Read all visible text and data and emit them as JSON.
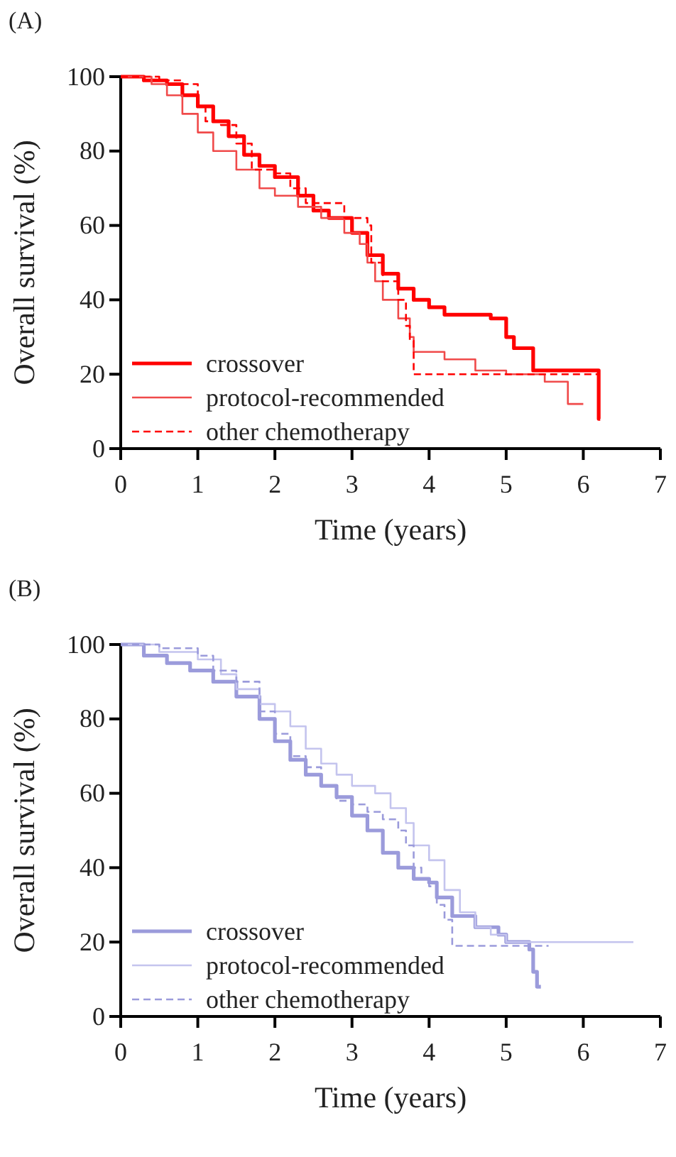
{
  "chart_data": [
    {
      "type": "step",
      "title": "(A)",
      "xlabel": "Time (years)",
      "ylabel": "Overall survival (%)",
      "xlim": [
        0,
        7
      ],
      "ylim": [
        0,
        100
      ],
      "xticks": [
        0,
        1,
        2,
        3,
        4,
        5,
        6,
        7
      ],
      "yticks": [
        0,
        20,
        40,
        60,
        80,
        100
      ],
      "legend": "bottom left",
      "series": [
        {
          "name": "crossover",
          "color": "#ff0000",
          "line_style": "solid",
          "x": [
            0,
            0.3,
            0.6,
            0.8,
            1.0,
            1.2,
            1.4,
            1.6,
            1.8,
            2.0,
            2.3,
            2.5,
            2.7,
            3.0,
            3.2,
            3.4,
            3.6,
            3.8,
            4.0,
            4.2,
            4.8,
            5.0,
            5.1,
            5.35,
            6.2,
            6.22
          ],
          "values": [
            100,
            99,
            98,
            95,
            92,
            88,
            84,
            79,
            76,
            73,
            68,
            64,
            62,
            58,
            52,
            47,
            43,
            40,
            38,
            36,
            35,
            30,
            27,
            21,
            8,
            8
          ]
        },
        {
          "name": "protocol-recommended",
          "color": "#f04a4a",
          "line_style": "solid",
          "x": [
            0,
            0.4,
            0.6,
            0.8,
            1.0,
            1.2,
            1.5,
            1.8,
            2.0,
            2.3,
            2.6,
            2.9,
            3.1,
            3.2,
            3.3,
            3.4,
            3.6,
            3.75,
            3.8,
            4.2,
            4.6,
            5.0,
            5.5,
            5.8,
            6.0
          ],
          "values": [
            100,
            98,
            95,
            90,
            85,
            80,
            75,
            70,
            68,
            65,
            62,
            58,
            55,
            50,
            45,
            40,
            35,
            30,
            26,
            24,
            21,
            20,
            18,
            12,
            12
          ]
        },
        {
          "name": "other chemotherapy",
          "color": "#ff0000",
          "line_style": "dashed",
          "x": [
            0,
            0.5,
            0.8,
            1.0,
            1.1,
            1.3,
            1.5,
            1.7,
            2.0,
            2.2,
            2.4,
            2.9,
            3.2,
            3.25,
            3.4,
            3.6,
            3.7,
            3.75,
            3.8,
            6.2
          ],
          "values": [
            100,
            99,
            98,
            92,
            88,
            87,
            82,
            75,
            74,
            70,
            66,
            62,
            60,
            50,
            45,
            40,
            33,
            29,
            20,
            20
          ]
        }
      ]
    },
    {
      "type": "step",
      "title": "(B)",
      "xlabel": "Time (years)",
      "ylabel": "Overall survival (%)",
      "xlim": [
        0,
        7
      ],
      "ylim": [
        0,
        100
      ],
      "xticks": [
        0,
        1,
        2,
        3,
        4,
        5,
        6,
        7
      ],
      "yticks": [
        0,
        20,
        40,
        60,
        80,
        100
      ],
      "legend": "bottom left",
      "series": [
        {
          "name": "crossover",
          "color": "#9b9bdb",
          "line_style": "solid",
          "x": [
            0,
            0.3,
            0.6,
            0.9,
            1.2,
            1.5,
            1.8,
            2.0,
            2.2,
            2.4,
            2.6,
            2.8,
            3.0,
            3.2,
            3.4,
            3.6,
            3.8,
            4.0,
            4.1,
            4.3,
            4.6,
            4.9,
            5.0,
            5.3,
            5.35,
            5.4,
            5.45
          ],
          "values": [
            100,
            97,
            95,
            93,
            90,
            86,
            80,
            74,
            69,
            65,
            62,
            59,
            54,
            50,
            44,
            40,
            37,
            36,
            32,
            27,
            24,
            22,
            20,
            18,
            12,
            8,
            8
          ]
        },
        {
          "name": "protocol-recommended",
          "color": "#c4c4ee",
          "line_style": "solid",
          "x": [
            0,
            0.5,
            1.0,
            1.3,
            1.5,
            1.8,
            2.0,
            2.2,
            2.4,
            2.6,
            2.8,
            3.0,
            3.3,
            3.5,
            3.7,
            3.8,
            4.0,
            4.2,
            4.4,
            4.6,
            4.8,
            5.0,
            6.65
          ],
          "values": [
            100,
            98,
            96,
            92,
            88,
            84,
            82,
            78,
            72,
            68,
            65,
            62,
            60,
            56,
            52,
            46,
            42,
            34,
            28,
            24,
            22,
            20,
            20
          ]
        },
        {
          "name": "other chemotherapy",
          "color": "#9b9bdb",
          "line_style": "dashed",
          "x": [
            0,
            0.5,
            1.0,
            1.2,
            1.5,
            1.8,
            2.0,
            2.2,
            2.4,
            2.6,
            2.8,
            3.0,
            3.2,
            3.4,
            3.6,
            3.7,
            3.8,
            3.9,
            4.0,
            4.1,
            4.2,
            4.3,
            5.55
          ],
          "values": [
            100,
            99,
            97,
            93,
            90,
            82,
            76,
            70,
            67,
            62,
            58,
            57,
            55,
            53,
            50,
            46,
            40,
            37,
            35,
            30,
            26,
            19,
            19
          ]
        }
      ]
    }
  ]
}
